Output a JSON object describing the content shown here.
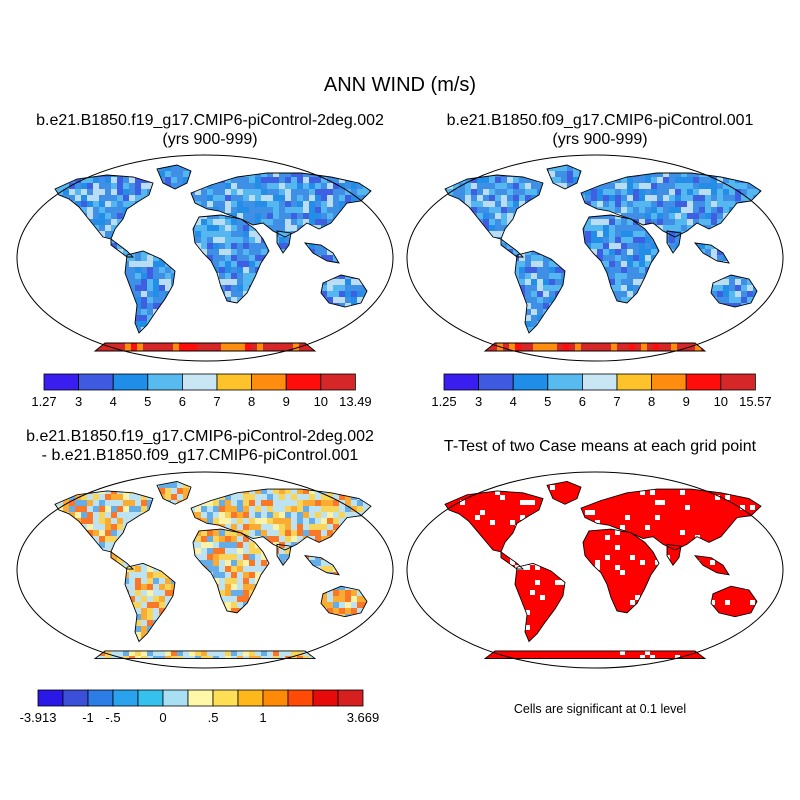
{
  "title": "ANN WIND (m/s)",
  "panels": [
    {
      "title_line1": "b.e21.B1850.f19_g17.CMIP6-piControl-2deg.002",
      "title_line2": "(yrs 900-999)",
      "colorbar": {
        "colors": [
          "#3a1ef0",
          "#3e5ae0",
          "#1f8ee8",
          "#58bbef",
          "#c9e6f5",
          "#fec22a",
          "#ff8d10",
          "#ff0c0c",
          "#d62728"
        ],
        "labels": [
          "1.27",
          "3",
          "4",
          "5",
          "6",
          "7",
          "8",
          "9",
          "10",
          "13.49"
        ]
      }
    },
    {
      "title_line1": "b.e21.B1850.f09_g17.CMIP6-piControl.001",
      "title_line2": "(yrs 900-999)",
      "colorbar": {
        "colors": [
          "#3a1ef0",
          "#3e5ae0",
          "#1f8ee8",
          "#58bbef",
          "#c9e6f5",
          "#fec22a",
          "#ff8d10",
          "#ff0c0c",
          "#d62728"
        ],
        "labels": [
          "1.25",
          "3",
          "4",
          "5",
          "6",
          "7",
          "8",
          "9",
          "10",
          "15.57"
        ]
      }
    },
    {
      "title_line1": "b.e21.B1850.f19_g17.CMIP6-piControl-2deg.002",
      "title_line2": "- b.e21.B1850.f09_g17.CMIP6-piControl.001",
      "colorbar": {
        "colors": [
          "#2a18e6",
          "#3c4fd8",
          "#2c7de6",
          "#2aa2ee",
          "#36c0ee",
          "#a9dff2",
          "#fff8a8",
          "#ffdf55",
          "#ffb81c",
          "#ff8a08",
          "#ff4b06",
          "#e60a0a",
          "#d62020"
        ],
        "labels": [
          "-3.913",
          "",
          "-1",
          "-.5",
          "",
          "0",
          "",
          ".5",
          "",
          "1",
          "",
          "",
          "",
          "3.669"
        ]
      }
    },
    {
      "title_line1": "T-Test of two Case means at each grid point",
      "note": "Cells are significant at 0.1 level"
    }
  ]
}
